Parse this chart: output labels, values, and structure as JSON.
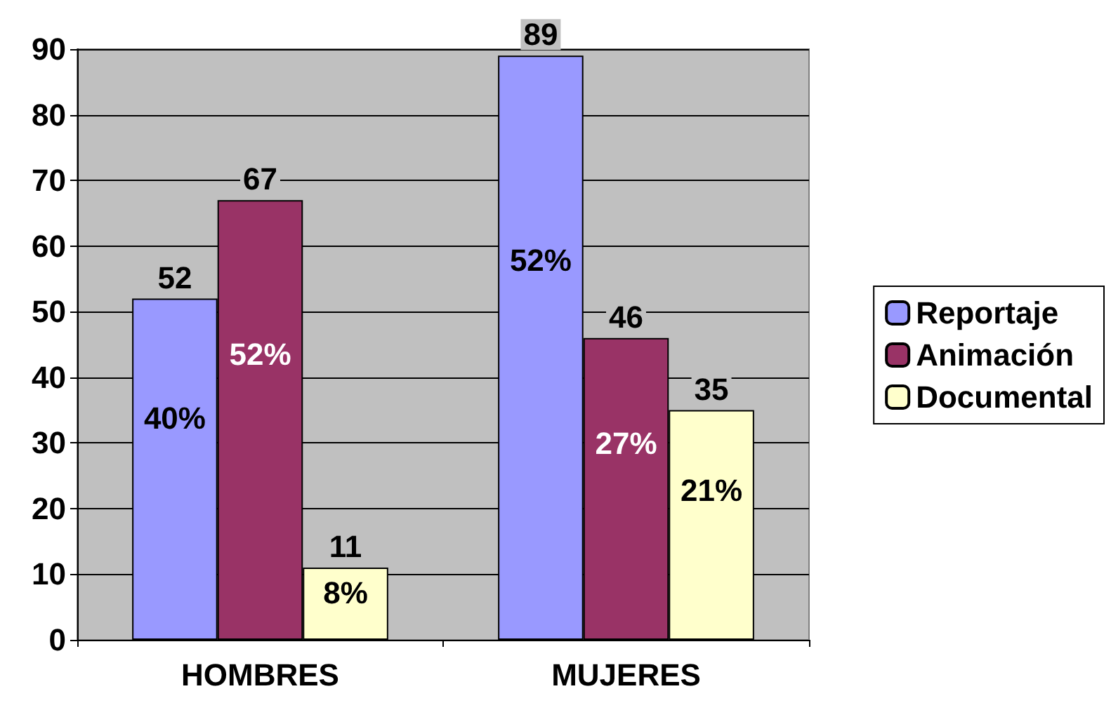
{
  "chart_data": {
    "type": "bar",
    "categories": [
      "HOMBRES",
      "MUJERES"
    ],
    "series": [
      {
        "name": "Reportaje",
        "color": "#9999ff",
        "values": [
          52,
          89
        ]
      },
      {
        "name": "Animación",
        "color": "#993366",
        "values": [
          67,
          46
        ]
      },
      {
        "name": "Documental",
        "color": "#ffffcc",
        "values": [
          11,
          35
        ]
      }
    ],
    "annotations": [
      "40%",
      "52%",
      "8%",
      "52%",
      "27%",
      "21%"
    ],
    "ylim": [
      0,
      90
    ],
    "yticks": [
      0,
      10,
      20,
      30,
      40,
      50,
      60,
      70,
      80,
      90
    ],
    "grid": "y",
    "legend": "right",
    "data_labels": true
  }
}
